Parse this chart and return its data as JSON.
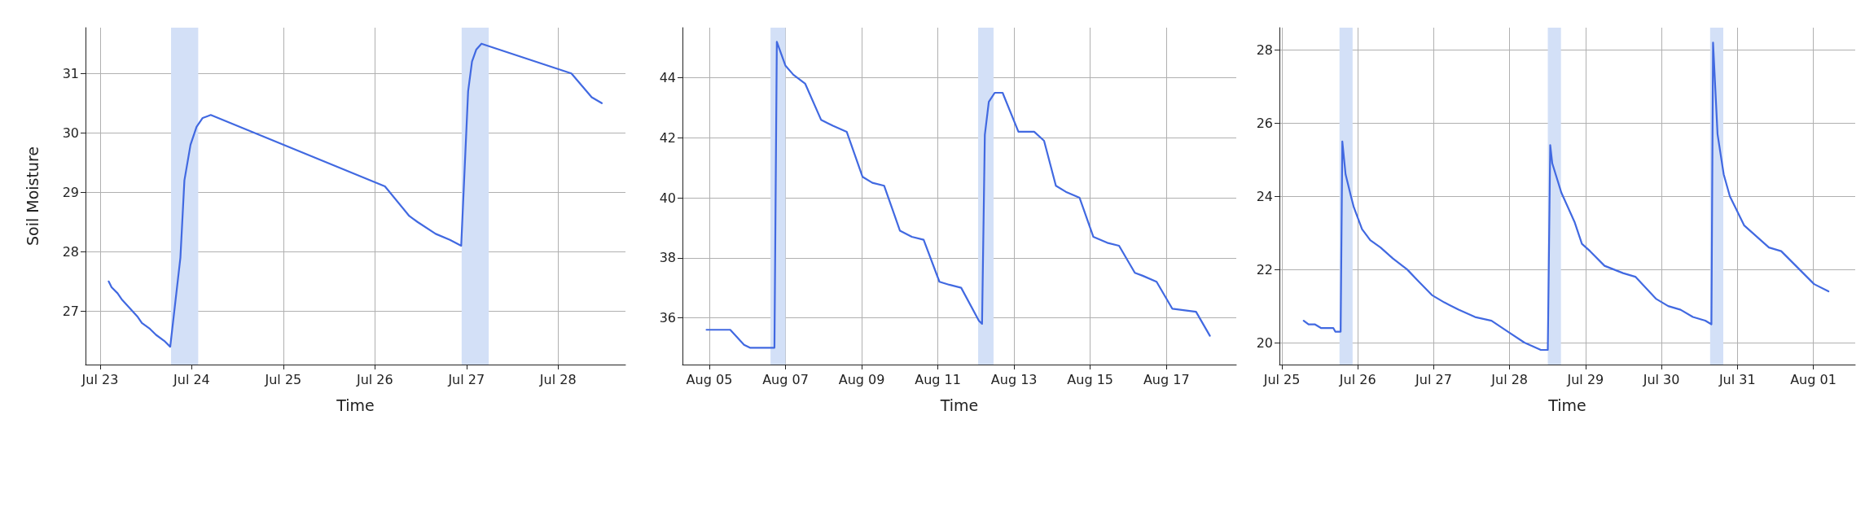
{
  "chart_data": [
    {
      "type": "line",
      "xlabel": "Time",
      "ylabel": "Soil Moisture",
      "grid": true,
      "legend": false,
      "marker": "none",
      "line_style": "solid",
      "xlim": [
        "--07-22T20:10",
        "--07-28T17:40"
      ],
      "ylim": [
        26.1,
        31.77
      ],
      "yticks": [
        27,
        28,
        29,
        30,
        31
      ],
      "xticks": [
        {
          "value": "--07-23",
          "label": "Jul 23"
        },
        {
          "value": "--07-24",
          "label": "Jul 24"
        },
        {
          "value": "--07-25",
          "label": "Jul 25"
        },
        {
          "value": "--07-26",
          "label": "Jul 26"
        },
        {
          "value": "--07-27",
          "label": "Jul 27"
        },
        {
          "value": "--07-28",
          "label": "Jul 28"
        }
      ],
      "bands": [
        {
          "axis": "x",
          "from": "--07-23T18:35",
          "to": "--07-24T01:42",
          "color": "#d3e0f7"
        },
        {
          "axis": "x",
          "from": "--07-26T22:44",
          "to": "--07-27T05:50",
          "color": "#d3e0f7"
        }
      ],
      "series": [
        {
          "color": "#4169e1",
          "x": [
            "--07-23T02:14",
            "--07-23T03:00",
            "--07-23T04:34",
            "--07-23T05:38",
            "--07-23T09:52",
            "--07-23T10:56",
            "--07-23T13:04",
            "--07-23T14:39",
            "--07-23T16:47",
            "--07-23T18:22",
            "--07-23T21:02",
            "--07-23T22:05",
            "--07-23T23:41",
            "--07-24T01:16",
            "--07-24T02:52",
            "--07-24T04:59",
            "--07-26T02:38",
            "--07-26T09:01",
            "--07-26T11:10",
            "--07-26T15:56",
            "--07-26T19:40",
            "--07-26T22:37",
            "--07-27T00:26",
            "--07-27T01:27",
            "--07-27T02:33",
            "--07-27T03:56",
            "--07-28T03:30",
            "--07-28T08:49",
            "--07-28T11:28"
          ],
          "values": [
            27.5,
            27.4,
            27.3,
            27.2,
            26.9,
            26.8,
            26.7,
            26.6,
            26.5,
            26.4,
            27.9,
            29.2,
            29.8,
            30.1,
            30.25,
            30.3,
            29.1,
            28.6,
            28.5,
            28.3,
            28.2,
            28.1,
            30.7,
            31.2,
            31.4,
            31.5,
            31.0,
            30.6,
            30.5
          ]
        }
      ]
    },
    {
      "type": "line",
      "xlabel": "Time",
      "grid": true,
      "legend": false,
      "marker": "none",
      "line_style": "solid",
      "xlim": [
        "--08-04T07:05",
        "--08-18T20:00"
      ],
      "ylim": [
        34.44,
        45.67
      ],
      "yticks": [
        36,
        38,
        40,
        42,
        44
      ],
      "xticks": [
        {
          "value": "--08-05",
          "label": "Aug 05"
        },
        {
          "value": "--08-07",
          "label": "Aug 07"
        },
        {
          "value": "--08-09",
          "label": "Aug 09"
        },
        {
          "value": "--08-11",
          "label": "Aug 11"
        },
        {
          "value": "--08-13",
          "label": "Aug 13"
        },
        {
          "value": "--08-15",
          "label": "Aug 15"
        },
        {
          "value": "--08-17",
          "label": "Aug 17"
        }
      ],
      "bands": [
        {
          "axis": "x",
          "from": "--08-06T14:33",
          "to": "--08-07T00:00",
          "color": "#d3e0f7"
        },
        {
          "axis": "x",
          "from": "--08-12T01:22",
          "to": "--08-12T11:04",
          "color": "#d3e0f7"
        }
      ],
      "series": [
        {
          "color": "#4169e1",
          "x": [
            "--08-04T22:15",
            "--08-05T02:00",
            "--08-05T13:11",
            "--08-05T21:53",
            "--08-06T01:36",
            "--08-06T14:03",
            "--08-06T17:02",
            "--08-06T18:32",
            "--08-07T00:00",
            "--08-07T04:58",
            "--08-07T12:26",
            "--08-07T22:23",
            "--08-08T05:51",
            "--08-08T14:33",
            "--08-09T00:30",
            "--08-09T06:43",
            "--08-09T14:10",
            "--08-10T00:07",
            "--08-10T07:35",
            "--08-10T15:02",
            "--08-11T00:59",
            "--08-11T07:12",
            "--08-11T14:40",
            "--08-12T01:52",
            "--08-12T03:50",
            "--08-12T05:35",
            "--08-12T08:05",
            "--08-12T11:49",
            "--08-12T16:47",
            "--08-13T02:44",
            "--08-13T12:40",
            "--08-13T18:54",
            "--08-14T02:21",
            "--08-14T08:35",
            "--08-14T17:17",
            "--08-15T01:55",
            "--08-15T10:42",
            "--08-15T18:09",
            "--08-16T04:06",
            "--08-16T09:04",
            "--08-16T17:47",
            "--08-17T03:44",
            "--08-17T18:39",
            "--08-18T03:22"
          ],
          "values": [
            35.6,
            35.6,
            35.6,
            35.1,
            35.0,
            35.0,
            35.0,
            45.2,
            44.4,
            44.1,
            43.8,
            42.6,
            42.4,
            42.2,
            40.7,
            40.5,
            40.4,
            38.9,
            38.7,
            38.6,
            37.2,
            37.1,
            37.0,
            35.9,
            35.8,
            42.1,
            43.2,
            43.5,
            43.5,
            42.2,
            42.2,
            41.9,
            40.4,
            40.2,
            40.0,
            38.7,
            38.5,
            38.4,
            37.5,
            37.4,
            37.2,
            36.3,
            36.2,
            35.4
          ]
        }
      ]
    },
    {
      "type": "line",
      "xlabel": "Time",
      "grid": true,
      "legend": false,
      "marker": "none",
      "line_style": "solid",
      "xlim": [
        "--07-24T23:13",
        "--08-01T13:16"
      ],
      "ylim": [
        19.4,
        28.61
      ],
      "yticks": [
        20,
        22,
        24,
        26,
        28
      ],
      "xticks": [
        {
          "value": "--07-25",
          "label": "Jul 25"
        },
        {
          "value": "--07-26",
          "label": "Jul 26"
        },
        {
          "value": "--07-27",
          "label": "Jul 27"
        },
        {
          "value": "--07-28",
          "label": "Jul 28"
        },
        {
          "value": "--07-29",
          "label": "Jul 29"
        },
        {
          "value": "--07-30",
          "label": "Jul 30"
        },
        {
          "value": "--07-31",
          "label": "Jul 31"
        },
        {
          "value": "--08-01",
          "label": "Aug 01"
        }
      ],
      "bands": [
        {
          "axis": "x",
          "from": "--07-25T18:12",
          "to": "--07-25T22:21",
          "color": "#d3e0f7"
        },
        {
          "axis": "x",
          "from": "--07-28T12:04",
          "to": "--07-28T16:14",
          "color": "#d3e0f7"
        },
        {
          "axis": "x",
          "from": "--07-30T15:23",
          "to": "--07-30T19:33",
          "color": "#d3e0f7"
        }
      ],
      "series": [
        {
          "color": "#4169e1",
          "x": [
            "--07-25T06:53",
            "--07-25T08:26",
            "--07-25T10:23",
            "--07-25T12:20",
            "--07-25T16:14",
            "--07-25T16:53",
            "--07-25T18:34",
            "--07-25T19:06",
            "--07-25T20:08",
            "--07-25T21:50",
            "--07-25T22:44",
            "--07-26T01:20",
            "--07-26T03:56",
            "--07-26T07:11",
            "--07-26T11:05",
            "--07-26T15:36",
            "--07-26T18:53",
            "--07-26T23:25",
            "--07-27T03:20",
            "--07-27T07:52",
            "--07-27T13:04",
            "--07-27T18:16",
            "--07-27T23:28",
            "--07-28T04:40",
            "--07-28T09:52",
            "--07-28T12:04",
            "--07-28T12:50",
            "--07-28T13:29",
            "--07-28T16:21",
            "--07-28T20:31",
            "--07-28T22:51",
            "--07-29T01:26",
            "--07-29T06:00",
            "--07-29T11:51",
            "--07-29T15:45",
            "--07-29T22:15",
            "--07-30T02:08",
            "--07-30T06:03",
            "--07-30T09:56",
            "--07-30T13:51",
            "--07-30T15:48",
            "--07-30T16:19",
            "--07-30T17:44",
            "--07-30T19:41",
            "--07-30T21:38",
            "--07-31T02:11",
            "--07-31T09:59",
            "--07-31T13:52",
            "--08-01T00:16",
            "--08-01T04:49"
          ],
          "values": [
            20.6,
            20.5,
            20.5,
            20.4,
            20.4,
            20.3,
            20.3,
            25.5,
            24.6,
            24.0,
            23.7,
            23.1,
            22.8,
            22.6,
            22.3,
            22.0,
            21.7,
            21.3,
            21.1,
            20.9,
            20.7,
            20.6,
            20.3,
            20.0,
            19.8,
            19.8,
            25.4,
            24.9,
            24.1,
            23.3,
            22.7,
            22.5,
            22.1,
            21.9,
            21.8,
            21.2,
            21.0,
            20.9,
            20.7,
            20.6,
            20.5,
            28.2,
            25.7,
            24.6,
            24.0,
            23.2,
            22.6,
            22.5,
            21.6,
            21.4
          ]
        }
      ]
    }
  ]
}
